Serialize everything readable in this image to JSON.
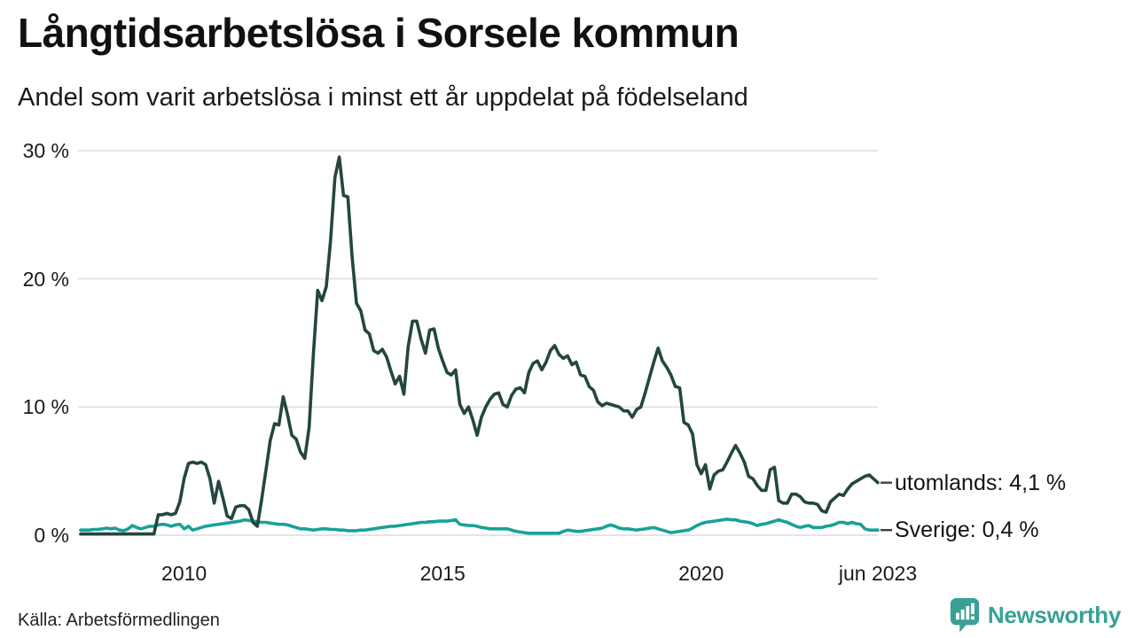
{
  "chart_data": {
    "type": "line",
    "title": "Långtidsarbetslösa i Sorsele kommun",
    "subtitle": "Andel som varit arbetslösa i minst ett år uppdelat på födelseland",
    "frequency": "monthly",
    "x_start": "2008-01",
    "x_end": "2023-06",
    "ylim": [
      0,
      30
    ],
    "grid": true,
    "legend_position": "right-end-labels",
    "y_ticks": [
      {
        "value": 0,
        "label": "0 %"
      },
      {
        "value": 10,
        "label": "10 %"
      },
      {
        "value": 20,
        "label": "20 %"
      },
      {
        "value": 30,
        "label": "30 %"
      }
    ],
    "x_ticks": [
      {
        "label": "2010",
        "month_index": 24
      },
      {
        "label": "2015",
        "month_index": 84
      },
      {
        "label": "2020",
        "month_index": 144
      },
      {
        "label": "jun 2023",
        "month_index": 185
      }
    ],
    "series": [
      {
        "name": "utomlands",
        "end_label": "utomlands: 4,1 %",
        "end_value_text": "4,1 %",
        "color": "#24463f",
        "values": [
          0.1,
          0.1,
          0.1,
          0.1,
          0.1,
          0.1,
          0.1,
          0.1,
          0.1,
          0.1,
          0.1,
          0.1,
          0.1,
          0.1,
          0.1,
          0.1,
          0.1,
          0.1,
          1.6,
          1.6,
          1.7,
          1.6,
          1.7,
          2.6,
          4.4,
          5.6,
          5.7,
          5.6,
          5.7,
          5.5,
          4.4,
          2.5,
          4.2,
          2.9,
          1.5,
          1.3,
          2.2,
          2.3,
          2.3,
          2.0,
          1.0,
          0.7,
          2.8,
          5.1,
          7.4,
          8.7,
          8.6,
          10.8,
          9.4,
          7.8,
          7.5,
          6.5,
          6.0,
          8.4,
          14.1,
          19.1,
          18.3,
          19.4,
          23.0,
          27.9,
          29.5,
          26.5,
          26.4,
          21.7,
          18.1,
          17.5,
          16.0,
          15.7,
          14.4,
          14.2,
          14.5,
          13.9,
          12.8,
          11.8,
          12.4,
          11.0,
          14.7,
          16.7,
          16.7,
          15.3,
          14.2,
          16.0,
          16.1,
          14.6,
          13.6,
          12.7,
          12.5,
          12.9,
          10.2,
          9.5,
          10.0,
          9.0,
          7.8,
          9.2,
          10.0,
          10.6,
          11.0,
          11.1,
          10.2,
          10.0,
          10.9,
          11.4,
          11.5,
          11.1,
          12.7,
          13.4,
          13.6,
          12.9,
          13.5,
          14.4,
          14.8,
          14.1,
          13.8,
          14.0,
          13.3,
          13.5,
          12.5,
          12.4,
          11.6,
          11.3,
          10.4,
          10.1,
          10.3,
          10.2,
          10.1,
          10.0,
          9.7,
          9.7,
          9.2,
          9.8,
          10.0,
          11.1,
          12.3,
          13.5,
          14.6,
          13.6,
          13.1,
          12.5,
          11.6,
          11.5,
          8.8,
          8.6,
          7.9,
          5.5,
          4.8,
          5.5,
          3.6,
          4.7,
          5.0,
          5.1,
          5.7,
          6.4,
          7.0,
          6.4,
          5.7,
          4.6,
          4.4,
          3.9,
          3.5,
          3.5,
          5.1,
          5.3,
          2.7,
          2.5,
          2.5,
          3.2,
          3.2,
          3.0,
          2.6,
          2.5,
          2.5,
          2.4,
          1.9,
          1.8,
          2.6,
          2.9,
          3.2,
          3.1,
          3.6,
          4.0,
          4.2,
          4.4,
          4.6,
          4.7,
          4.4,
          4.1
        ]
      },
      {
        "name": "Sverige",
        "end_label": "Sverige: 0,4 %",
        "end_value_text": "0,4 %",
        "color": "#18a296",
        "values": [
          0.4,
          0.4,
          0.4,
          0.45,
          0.45,
          0.5,
          0.55,
          0.5,
          0.55,
          0.4,
          0.35,
          0.5,
          0.75,
          0.6,
          0.5,
          0.6,
          0.7,
          0.7,
          0.8,
          0.85,
          0.8,
          0.7,
          0.8,
          0.85,
          0.5,
          0.7,
          0.4,
          0.5,
          0.6,
          0.7,
          0.75,
          0.8,
          0.85,
          0.9,
          0.95,
          1.0,
          1.05,
          1.1,
          1.2,
          1.15,
          1.1,
          1.05,
          1.0,
          1.0,
          0.95,
          0.9,
          0.85,
          0.85,
          0.8,
          0.7,
          0.6,
          0.5,
          0.5,
          0.45,
          0.4,
          0.45,
          0.5,
          0.5,
          0.45,
          0.45,
          0.4,
          0.4,
          0.35,
          0.35,
          0.35,
          0.4,
          0.4,
          0.45,
          0.5,
          0.55,
          0.6,
          0.65,
          0.7,
          0.7,
          0.75,
          0.8,
          0.85,
          0.9,
          0.95,
          1.0,
          1.0,
          1.05,
          1.05,
          1.1,
          1.1,
          1.1,
          1.15,
          1.2,
          0.85,
          0.8,
          0.75,
          0.75,
          0.7,
          0.6,
          0.55,
          0.5,
          0.5,
          0.5,
          0.5,
          0.5,
          0.4,
          0.3,
          0.25,
          0.2,
          0.15,
          0.15,
          0.15,
          0.15,
          0.15,
          0.15,
          0.15,
          0.15,
          0.3,
          0.4,
          0.35,
          0.3,
          0.3,
          0.35,
          0.4,
          0.45,
          0.5,
          0.55,
          0.7,
          0.8,
          0.7,
          0.55,
          0.5,
          0.5,
          0.45,
          0.4,
          0.45,
          0.5,
          0.55,
          0.6,
          0.5,
          0.4,
          0.3,
          0.2,
          0.25,
          0.3,
          0.35,
          0.4,
          0.55,
          0.75,
          0.9,
          1.0,
          1.05,
          1.1,
          1.15,
          1.2,
          1.25,
          1.2,
          1.2,
          1.1,
          1.05,
          1.0,
          0.9,
          0.75,
          0.85,
          0.9,
          1.0,
          1.1,
          1.2,
          1.1,
          1.0,
          0.85,
          0.7,
          0.6,
          0.7,
          0.75,
          0.6,
          0.6,
          0.6,
          0.7,
          0.75,
          0.85,
          1.0,
          1.0,
          0.9,
          1.0,
          0.9,
          0.85,
          0.5,
          0.4,
          0.4,
          0.4
        ]
      }
    ],
    "source": "Källa: Arbetsförmedlingen"
  },
  "footer": {
    "logo_text": "Newsworthy"
  },
  "colors": {
    "grid": "#e4e4e9",
    "end_dash": "#3f3f3f",
    "brand_teal": "#3aa096",
    "title_text": "#111111"
  }
}
